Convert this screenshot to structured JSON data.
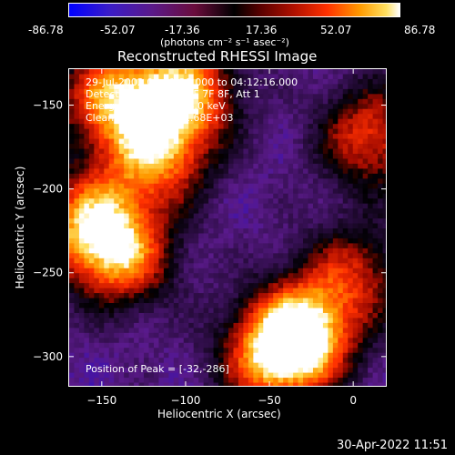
{
  "colorbar": {
    "ticks": [
      "-86.78",
      "-52.07",
      "-17.36",
      "17.36",
      "52.07",
      "86.78"
    ],
    "tick_values": [
      -86.78,
      -52.07,
      -17.36,
      17.36,
      52.07,
      86.78
    ],
    "unit": "(photons cm⁻² s⁻¹ asec⁻²)",
    "colors": [
      "#0000ff",
      "#5a1a8a",
      "#000000",
      "#ff3000",
      "#ffe060",
      "#ffffff"
    ]
  },
  "chart_data": {
    "type": "heatmap",
    "title": "Reconstructed RHESSI Image",
    "xlabel": "Heliocentric X (arcsec)",
    "ylabel": "Heliocentric Y (arcsec)",
    "xlim": [
      -170,
      20
    ],
    "ylim": [
      -318,
      -128
    ],
    "x_ticks": [
      -150,
      -100,
      -50,
      0
    ],
    "y_ticks": [
      -150,
      -200,
      -250,
      -300
    ],
    "x_tick_labels": [
      "−150",
      "−100",
      "−50",
      "0"
    ],
    "y_tick_labels": [
      "−150",
      "−200",
      "−250",
      "−300"
    ],
    "zlim": [
      -86.78,
      86.78
    ],
    "grid": false,
    "annotations": [
      "29-Jul-2002 04:11:28.000 to 04:12:16.000",
      "Detectors: 3F 4F 5F 6F 7F 8F, Att 1",
      "Energy Range: 3.0 - 6.0 keV",
      "Clean     Total counts: 1.68E+03"
    ],
    "peak_label": "Position of Peak = [-32,-286]",
    "peak": [
      -32,
      -286
    ],
    "sources": [
      {
        "x": -32,
        "y": -286,
        "amp": 86.78
      },
      {
        "x": -102,
        "y": -142,
        "amp": 70
      },
      {
        "x": -145,
        "y": -145,
        "amp": 55
      },
      {
        "x": -118,
        "y": -180,
        "amp": 50
      },
      {
        "x": -158,
        "y": -220,
        "amp": 55
      },
      {
        "x": -138,
        "y": -240,
        "amp": 45
      },
      {
        "x": -50,
        "y": -302,
        "amp": 40
      },
      {
        "x": 10,
        "y": -168,
        "amp": 40
      },
      {
        "x": 0,
        "y": -250,
        "amp": 25
      }
    ]
  },
  "footer": "30-Apr-2022 11:51"
}
